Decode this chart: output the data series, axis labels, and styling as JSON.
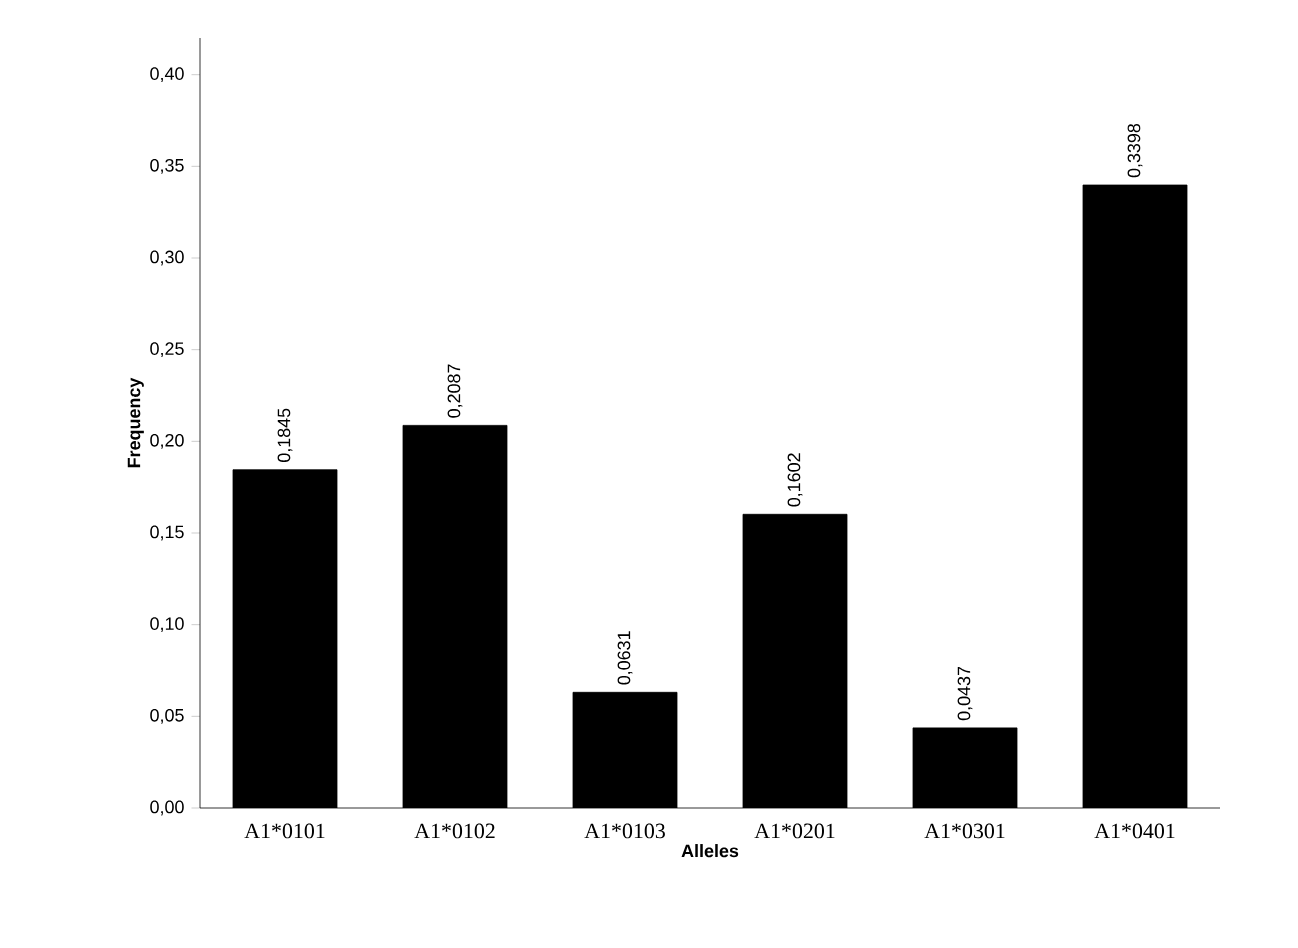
{
  "chart_data": {
    "type": "bar",
    "xlabel": "Alleles",
    "ylabel": "Frequency",
    "categories": [
      "A1*0101",
      "A1*0102",
      "A1*0103",
      "A1*0201",
      "A1*0301",
      "A1*0401"
    ],
    "values": [
      0.1845,
      0.2087,
      0.0631,
      0.1602,
      0.0437,
      0.3398
    ],
    "value_labels": [
      "0,1845",
      "0,2087",
      "0,0631",
      "0,1602",
      "0,0437",
      "0,3398"
    ],
    "color": "#000000",
    "ylim": [
      0,
      0.42
    ],
    "yticks": [
      {
        "value": 0,
        "label": "0,00"
      },
      {
        "value": 0.05,
        "label": "0,05"
      },
      {
        "value": 0.1,
        "label": "0,10"
      },
      {
        "value": 0.15,
        "label": "0,15"
      },
      {
        "value": 0.2,
        "label": "0,20"
      },
      {
        "value": 0.25,
        "label": "0,25"
      },
      {
        "value": 0.3,
        "label": "0,30"
      },
      {
        "value": 0.35,
        "label": "0,35"
      },
      {
        "value": 0.4,
        "label": "0,40"
      }
    ],
    "grid": false
  }
}
